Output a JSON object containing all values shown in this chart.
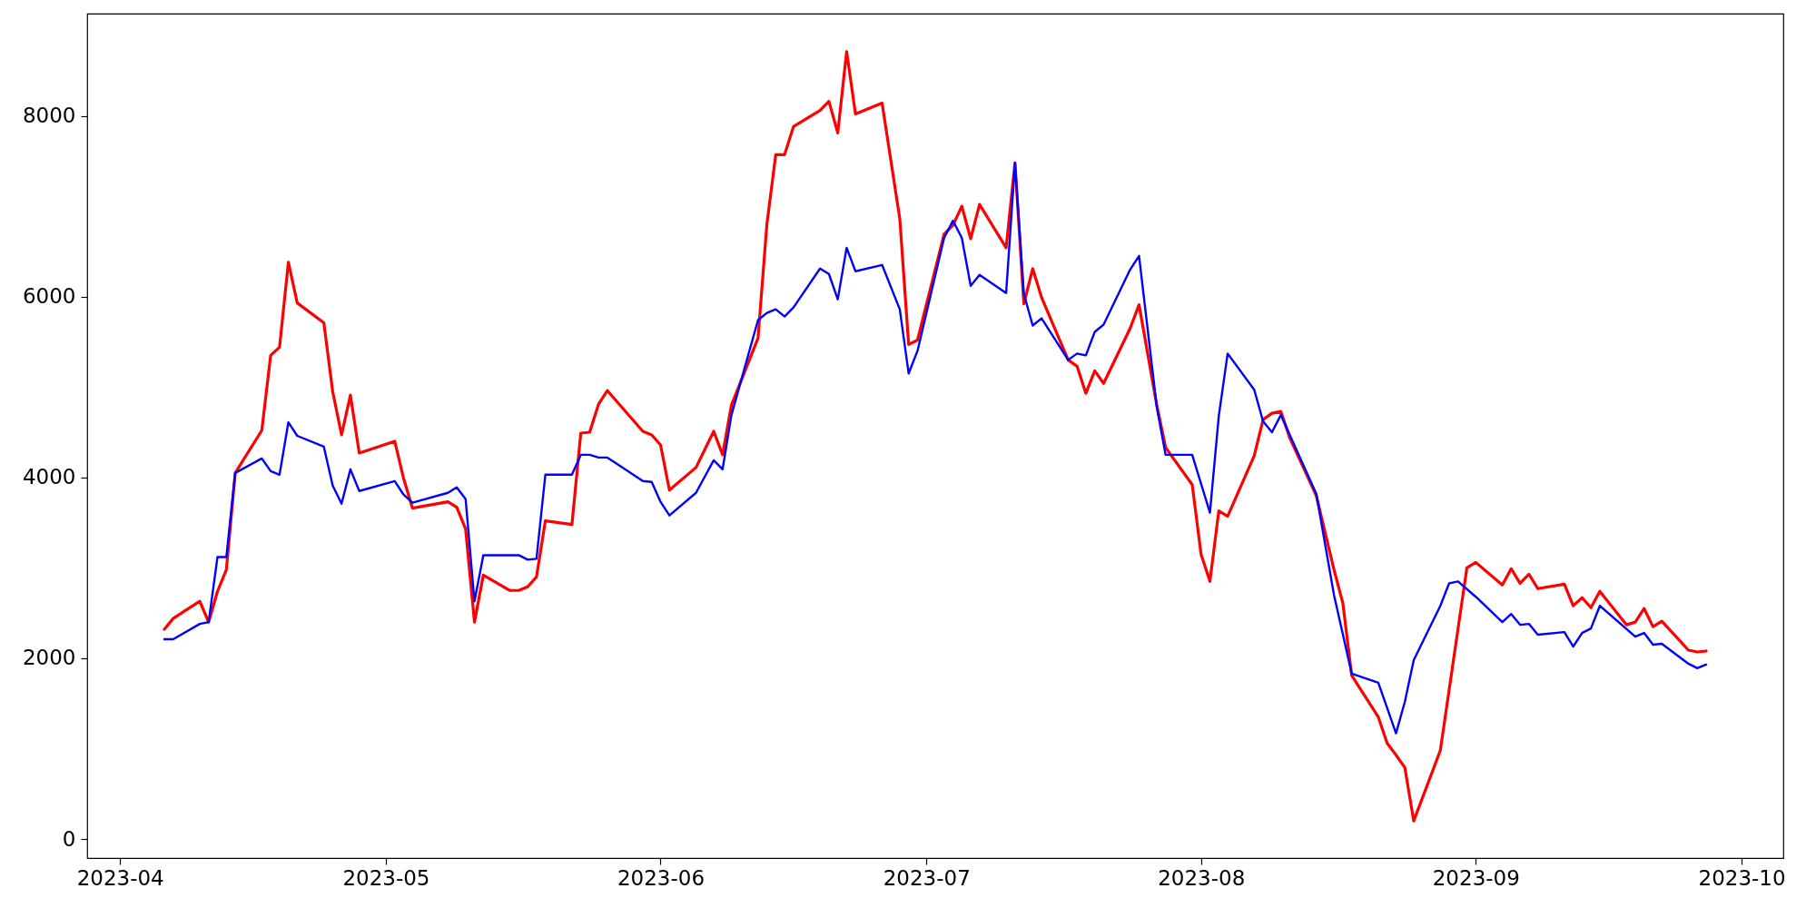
{
  "chart_data": {
    "type": "line",
    "xlim": [
      "2023-03-28T07:00",
      "2023-10-05T17:00"
    ],
    "xticks": [
      "2023-04",
      "2023-05",
      "2023-06",
      "2023-07",
      "2023-08",
      "2023-09",
      "2023-10"
    ],
    "ylim": [
      -210,
      9130
    ],
    "yticks": [
      0,
      2000,
      4000,
      6000,
      8000
    ],
    "series": [
      {
        "color": "#ff0000",
        "x": [
          "2023-04-06",
          "2023-04-07",
          "2023-04-10",
          "2023-04-11",
          "2023-04-12",
          "2023-04-13",
          "2023-04-14",
          "2023-04-17",
          "2023-04-18",
          "2023-04-19",
          "2023-04-20",
          "2023-04-21",
          "2023-04-24",
          "2023-04-25",
          "2023-04-26",
          "2023-04-27",
          "2023-04-28",
          "2023-05-02",
          "2023-05-03",
          "2023-05-04",
          "2023-05-08",
          "2023-05-09",
          "2023-05-10",
          "2023-05-11",
          "2023-05-12",
          "2023-05-15",
          "2023-05-16",
          "2023-05-17",
          "2023-05-18",
          "2023-05-19",
          "2023-05-22",
          "2023-05-23",
          "2023-05-24",
          "2023-05-25",
          "2023-05-26",
          "2023-05-30",
          "2023-05-31",
          "2023-06-01",
          "2023-06-02",
          "2023-06-05",
          "2023-06-07",
          "2023-06-08",
          "2023-06-09",
          "2023-06-12",
          "2023-06-13",
          "2023-06-14",
          "2023-06-15",
          "2023-06-16",
          "2023-06-19",
          "2023-06-20",
          "2023-06-21",
          "2023-06-22",
          "2023-06-23",
          "2023-06-26",
          "2023-06-28",
          "2023-06-29",
          "2023-06-30",
          "2023-07-03",
          "2023-07-04",
          "2023-07-05",
          "2023-07-06",
          "2023-07-07",
          "2023-07-10",
          "2023-07-11",
          "2023-07-12",
          "2023-07-13",
          "2023-07-14",
          "2023-07-17",
          "2023-07-18",
          "2023-07-19",
          "2023-07-20",
          "2023-07-21",
          "2023-07-24",
          "2023-07-25",
          "2023-07-27",
          "2023-07-28",
          "2023-07-31",
          "2023-08-01",
          "2023-08-02",
          "2023-08-03",
          "2023-08-04",
          "2023-08-07",
          "2023-08-08",
          "2023-08-09",
          "2023-08-10",
          "2023-08-11",
          "2023-08-14",
          "2023-08-16",
          "2023-08-17",
          "2023-08-18",
          "2023-08-21",
          "2023-08-22",
          "2023-08-23",
          "2023-08-24",
          "2023-08-25",
          "2023-08-28",
          "2023-08-31",
          "2023-09-01",
          "2023-09-04",
          "2023-09-05",
          "2023-09-06",
          "2023-09-07",
          "2023-09-08",
          "2023-09-11",
          "2023-09-12",
          "2023-09-13",
          "2023-09-14",
          "2023-09-15",
          "2023-09-18",
          "2023-09-19",
          "2023-09-20",
          "2023-09-21",
          "2023-09-22",
          "2023-09-25",
          "2023-09-26",
          "2023-09-27"
        ],
        "values": [
          2320,
          2440,
          2630,
          2400,
          2740,
          2980,
          4050,
          4520,
          5350,
          5440,
          6380,
          5930,
          5710,
          4950,
          4470,
          4910,
          4270,
          4400,
          3990,
          3660,
          3730,
          3670,
          3430,
          2400,
          2920,
          2750,
          2750,
          2790,
          2900,
          3520,
          3480,
          4490,
          4500,
          4810,
          4960,
          4510,
          4470,
          4360,
          3860,
          4110,
          4510,
          4250,
          4800,
          5540,
          6800,
          7570,
          7570,
          7880,
          8060,
          8160,
          7810,
          8710,
          8020,
          8140,
          6860,
          5470,
          5520,
          6690,
          6790,
          7000,
          6640,
          7020,
          6540,
          7480,
          5920,
          6310,
          5990,
          5300,
          5230,
          4930,
          5180,
          5040,
          5650,
          5910,
          4800,
          4330,
          3920,
          3150,
          2850,
          3630,
          3570,
          4240,
          4640,
          4710,
          4730,
          4440,
          3800,
          2980,
          2610,
          1810,
          1350,
          1060,
          930,
          790,
          200,
          980,
          3000,
          3060,
          2810,
          2990,
          2830,
          2930,
          2770,
          2820,
          2580,
          2670,
          2560,
          2740,
          2370,
          2400,
          2550,
          2350,
          2410,
          2090,
          2070,
          2080
        ]
      },
      {
        "color": "#0000ff",
        "x": [
          "2023-04-06",
          "2023-04-07",
          "2023-04-10",
          "2023-04-11",
          "2023-04-12",
          "2023-04-13",
          "2023-04-14",
          "2023-04-17",
          "2023-04-18",
          "2023-04-19",
          "2023-04-20",
          "2023-04-21",
          "2023-04-24",
          "2023-04-25",
          "2023-04-26",
          "2023-04-27",
          "2023-04-28",
          "2023-05-02",
          "2023-05-03",
          "2023-05-04",
          "2023-05-08",
          "2023-05-09",
          "2023-05-10",
          "2023-05-11",
          "2023-05-12",
          "2023-05-15",
          "2023-05-16",
          "2023-05-17",
          "2023-05-18",
          "2023-05-19",
          "2023-05-22",
          "2023-05-23",
          "2023-05-24",
          "2023-05-25",
          "2023-05-26",
          "2023-05-30",
          "2023-05-31",
          "2023-06-01",
          "2023-06-02",
          "2023-06-05",
          "2023-06-07",
          "2023-06-08",
          "2023-06-09",
          "2023-06-12",
          "2023-06-13",
          "2023-06-14",
          "2023-06-15",
          "2023-06-16",
          "2023-06-19",
          "2023-06-20",
          "2023-06-21",
          "2023-06-22",
          "2023-06-23",
          "2023-06-26",
          "2023-06-28",
          "2023-06-29",
          "2023-06-30",
          "2023-07-03",
          "2023-07-04",
          "2023-07-05",
          "2023-07-06",
          "2023-07-07",
          "2023-07-10",
          "2023-07-11",
          "2023-07-12",
          "2023-07-13",
          "2023-07-14",
          "2023-07-17",
          "2023-07-18",
          "2023-07-19",
          "2023-07-20",
          "2023-07-21",
          "2023-07-24",
          "2023-07-25",
          "2023-07-27",
          "2023-07-28",
          "2023-07-31",
          "2023-08-02",
          "2023-08-03",
          "2023-08-04",
          "2023-08-07",
          "2023-08-08",
          "2023-08-09",
          "2023-08-10",
          "2023-08-14",
          "2023-08-16",
          "2023-08-18",
          "2023-08-21",
          "2023-08-23",
          "2023-08-24",
          "2023-08-25",
          "2023-08-28",
          "2023-08-29",
          "2023-08-30",
          "2023-09-01",
          "2023-09-04",
          "2023-09-05",
          "2023-09-06",
          "2023-09-07",
          "2023-09-08",
          "2023-09-11",
          "2023-09-12",
          "2023-09-13",
          "2023-09-14",
          "2023-09-15",
          "2023-09-19",
          "2023-09-20",
          "2023-09-21",
          "2023-09-22",
          "2023-09-25",
          "2023-09-26",
          "2023-09-27"
        ],
        "values": [
          2210,
          2210,
          2380,
          2400,
          3120,
          3120,
          4050,
          4210,
          4070,
          4030,
          4610,
          4460,
          4340,
          3910,
          3710,
          4090,
          3850,
          3960,
          3810,
          3720,
          3830,
          3890,
          3760,
          2630,
          3140,
          3140,
          3140,
          3090,
          3100,
          4030,
          4030,
          4250,
          4250,
          4220,
          4220,
          3960,
          3950,
          3730,
          3580,
          3830,
          4190,
          4090,
          4690,
          5740,
          5820,
          5860,
          5780,
          5880,
          6310,
          6250,
          5970,
          6540,
          6280,
          6350,
          5860,
          5150,
          5400,
          6650,
          6840,
          6650,
          6120,
          6240,
          6040,
          7480,
          6030,
          5680,
          5760,
          5300,
          5370,
          5350,
          5610,
          5690,
          6300,
          6450,
          4780,
          4250,
          4250,
          3610,
          4680,
          5370,
          4970,
          4620,
          4500,
          4690,
          3820,
          2700,
          1830,
          1730,
          1170,
          1520,
          1980,
          2580,
          2830,
          2850,
          2680,
          2400,
          2490,
          2370,
          2380,
          2260,
          2290,
          2130,
          2280,
          2330,
          2580,
          2240,
          2280,
          2150,
          2160,
          1940,
          1890,
          1930
        ]
      }
    ]
  }
}
